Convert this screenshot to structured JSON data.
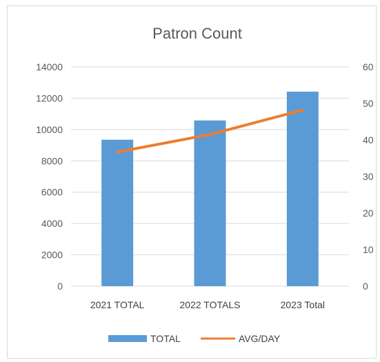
{
  "chart_data": {
    "type": "bar",
    "title": "Patron Count",
    "categories": [
      "2021 TOTAL",
      "2022 TOTALS",
      "2023 Total"
    ],
    "series": [
      {
        "name": "TOTAL",
        "type": "bar",
        "axis": "primary",
        "values": [
          9350,
          10580,
          12420
        ]
      },
      {
        "name": "AVG/DAY",
        "type": "line",
        "axis": "secondary",
        "values": [
          36.7,
          41.5,
          48.2
        ]
      }
    ],
    "y_primary": {
      "min": 0,
      "max": 14000,
      "ticks": [
        0,
        2000,
        4000,
        6000,
        8000,
        10000,
        12000,
        14000
      ]
    },
    "y_secondary": {
      "min": 0,
      "max": 60,
      "ticks": [
        0,
        10,
        20,
        30,
        40,
        50,
        60
      ]
    },
    "grid": true,
    "legend_position": "bottom",
    "colors": {
      "bar": "#5b9bd5",
      "line": "#ed7d31",
      "grid": "#d9d9d9"
    }
  }
}
